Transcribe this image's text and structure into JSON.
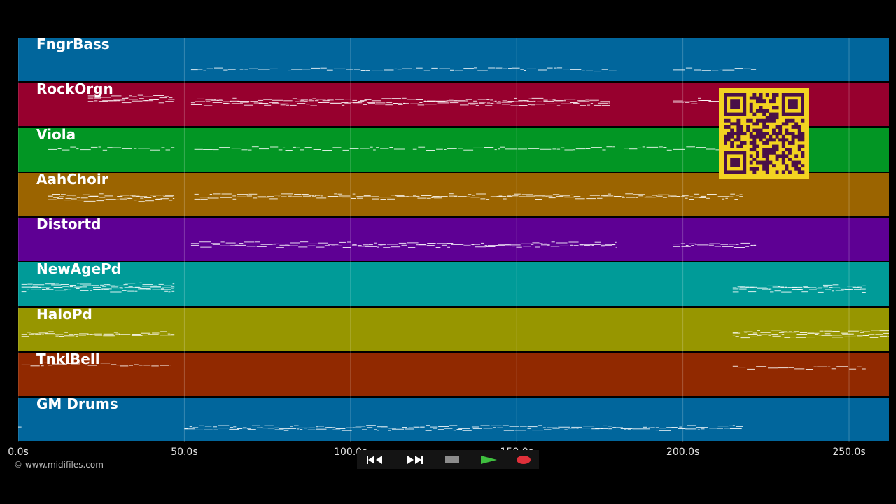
{
  "tracks": [
    {
      "name": "FngrBass",
      "color": "#01669c",
      "segments": [
        [
          52,
          180,
          0.73
        ],
        [
          197,
          222,
          0.73
        ]
      ]
    },
    {
      "name": "RockOrgn",
      "color": "#97002e",
      "segments": [
        [
          21,
          47,
          0.33,
          3
        ],
        [
          52,
          178,
          0.4,
          3
        ],
        [
          197,
          222,
          0.4,
          2
        ]
      ]
    },
    {
      "name": "Viola",
      "color": "#029624",
      "segments": [
        [
          9,
          47,
          0.47
        ],
        [
          53,
          218,
          0.47
        ]
      ]
    },
    {
      "name": "AahChoir",
      "color": "#9b6400",
      "segments": [
        [
          9,
          47,
          0.52,
          3
        ],
        [
          53,
          218,
          0.52,
          2
        ]
      ]
    },
    {
      "name": "Distortd",
      "color": "#5e0094",
      "segments": [
        [
          52,
          180,
          0.6,
          2
        ],
        [
          197,
          222,
          0.6,
          2
        ]
      ]
    },
    {
      "name": "NewAgePd",
      "color": "#009b98",
      "segments": [
        [
          1,
          47,
          0.5,
          4
        ],
        [
          215,
          255,
          0.55,
          3
        ]
      ]
    },
    {
      "name": "HaloPd",
      "color": "#979600",
      "segments": [
        [
          1,
          47,
          0.58,
          2
        ],
        [
          215,
          262,
          0.55,
          3
        ]
      ]
    },
    {
      "name": "TnklBell",
      "color": "#912900",
      "segments": [
        [
          1,
          46,
          0.27,
          1
        ],
        [
          215,
          255,
          0.35,
          1
        ]
      ]
    },
    {
      "name": "GM Drums",
      "color": "#01669c",
      "segments": [
        [
          0,
          1,
          0.65,
          1
        ],
        [
          50,
          218,
          0.68,
          2
        ]
      ]
    }
  ],
  "timeline": {
    "max_seconds": 262,
    "ticks": [
      {
        "label": "0.0s",
        "value": 0
      },
      {
        "label": "50.0s",
        "value": 50
      },
      {
        "label": "100.0s",
        "value": 100
      },
      {
        "label": "150.0s",
        "value": 150
      },
      {
        "label": "200.0s",
        "value": 200
      },
      {
        "label": "250.0s",
        "value": 250
      }
    ]
  },
  "copyright": "© www.midifiles.com",
  "transport": {
    "buttons": [
      {
        "name": "rewind-button",
        "icon": "rewind-icon",
        "color": "#222222"
      },
      {
        "name": "fast-forward-button",
        "icon": "fast-forward-icon",
        "color": "#222222"
      },
      {
        "name": "stop-button",
        "icon": "stop-icon",
        "color": "#333333"
      },
      {
        "name": "play-button",
        "icon": "play-icon",
        "color": "#1c4a1c"
      },
      {
        "name": "record-button",
        "icon": "record-icon",
        "color": "#4a1515"
      }
    ]
  },
  "qr_code": {
    "icon": "qr-code-icon",
    "background": "#f3d321",
    "foreground": "#4a1048"
  }
}
